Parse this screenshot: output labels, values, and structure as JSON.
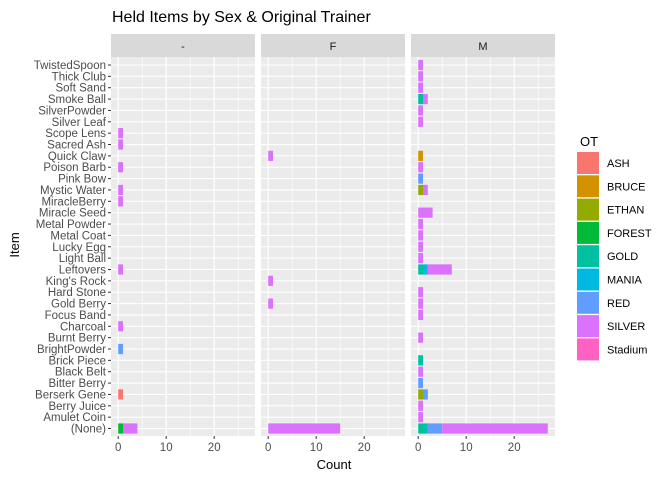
{
  "chart_data": {
    "type": "bar",
    "orientation": "horizontal",
    "stacked": true,
    "title": "Held Items by Sex & Original Trainer",
    "xlabel": "Count",
    "ylabel": "Item",
    "xlim": [
      0,
      27
    ],
    "xticks": [
      0,
      10,
      20
    ],
    "grid": true,
    "facets": [
      "-",
      "F",
      "M"
    ],
    "legend": {
      "title": "OT",
      "placement": "right",
      "entries": [
        {
          "name": "ASH",
          "color": "#F8766D"
        },
        {
          "name": "BRUCE",
          "color": "#D39200"
        },
        {
          "name": "ETHAN",
          "color": "#93AA00"
        },
        {
          "name": "FOREST",
          "color": "#00BA38"
        },
        {
          "name": "GOLD",
          "color": "#00C19F"
        },
        {
          "name": "MANIA",
          "color": "#00B9E3"
        },
        {
          "name": "RED",
          "color": "#619CFF"
        },
        {
          "name": "SILVER",
          "color": "#DB72FB"
        },
        {
          "name": "Stadium",
          "color": "#FF61C3"
        }
      ]
    },
    "categories": [
      "TwistedSpoon",
      "Thick Club",
      "Soft Sand",
      "Smoke Ball",
      "SilverPowder",
      "Silver Leaf",
      "Scope Lens",
      "Sacred Ash",
      "Quick Claw",
      "Poison Barb",
      "Pink Bow",
      "Mystic Water",
      "MiracleBerry",
      "Miracle Seed",
      "Metal Powder",
      "Metal Coat",
      "Lucky Egg",
      "Light Ball",
      "Leftovers",
      "King's Rock",
      "Hard Stone",
      "Gold Berry",
      "Focus Band",
      "Charcoal",
      "Burnt Berry",
      "BrightPowder",
      "Brick Piece",
      "Black Belt",
      "Bitter Berry",
      "Berserk Gene",
      "Berry Juice",
      "Amulet Coin",
      "(None)"
    ],
    "data": {
      "-": {
        "Scope Lens": {
          "SILVER": 1
        },
        "Sacred Ash": {
          "SILVER": 1
        },
        "Poison Barb": {
          "SILVER": 1
        },
        "Mystic Water": {
          "SILVER": 1
        },
        "MiracleBerry": {
          "SILVER": 1
        },
        "Leftovers": {
          "SILVER": 1
        },
        "Charcoal": {
          "SILVER": 1
        },
        "BrightPowder": {
          "RED": 1
        },
        "Berserk Gene": {
          "ASH": 1
        },
        "(None)": {
          "SILVER": 3,
          "FOREST": 1
        }
      },
      "F": {
        "Quick Claw": {
          "SILVER": 1
        },
        "King's Rock": {
          "SILVER": 1
        },
        "Gold Berry": {
          "SILVER": 1
        },
        "(None)": {
          "SILVER": 15
        }
      },
      "M": {
        "TwistedSpoon": {
          "SILVER": 1
        },
        "Thick Club": {
          "SILVER": 1
        },
        "Soft Sand": {
          "SILVER": 1
        },
        "Smoke Ball": {
          "SILVER": 1,
          "GOLD": 1
        },
        "SilverPowder": {
          "SILVER": 1
        },
        "Silver Leaf": {
          "SILVER": 1
        },
        "Quick Claw": {
          "BRUCE": 1
        },
        "Poison Barb": {
          "SILVER": 1
        },
        "Pink Bow": {
          "RED": 1
        },
        "Mystic Water": {
          "SILVER": 1,
          "ETHAN": 1
        },
        "Miracle Seed": {
          "SILVER": 3
        },
        "Metal Powder": {
          "SILVER": 1
        },
        "Metal Coat": {
          "SILVER": 1
        },
        "Lucky Egg": {
          "SILVER": 1
        },
        "Light Ball": {
          "SILVER": 1
        },
        "Leftovers": {
          "SILVER": 5,
          "MANIA": 1,
          "GOLD": 1
        },
        "Hard Stone": {
          "SILVER": 1
        },
        "Gold Berry": {
          "SILVER": 1
        },
        "Focus Band": {
          "SILVER": 1
        },
        "Burnt Berry": {
          "SILVER": 1
        },
        "Brick Piece": {
          "GOLD": 1
        },
        "Black Belt": {
          "SILVER": 1
        },
        "Bitter Berry": {
          "RED": 1
        },
        "Berserk Gene": {
          "RED": 1,
          "ETHAN": 1
        },
        "Berry Juice": {
          "SILVER": 1
        },
        "Amulet Coin": {
          "SILVER": 1
        },
        "(None)": {
          "SILVER": 22,
          "RED": 3,
          "GOLD": 2
        }
      }
    }
  }
}
